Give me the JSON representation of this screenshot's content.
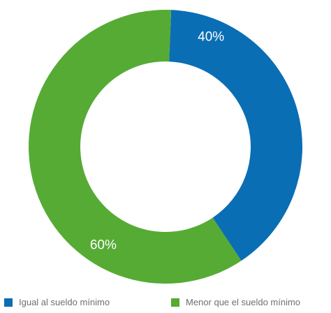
{
  "chart_data": {
    "type": "pie",
    "donut": true,
    "categories": [
      "Igual al sueldo mínimo",
      "Menor que el sueldo mínimo"
    ],
    "values": [
      40,
      60
    ],
    "labels": [
      "40%",
      "60%"
    ],
    "colors": [
      "#0a6eb4",
      "#56ab34"
    ],
    "legend_position": "bottom"
  }
}
